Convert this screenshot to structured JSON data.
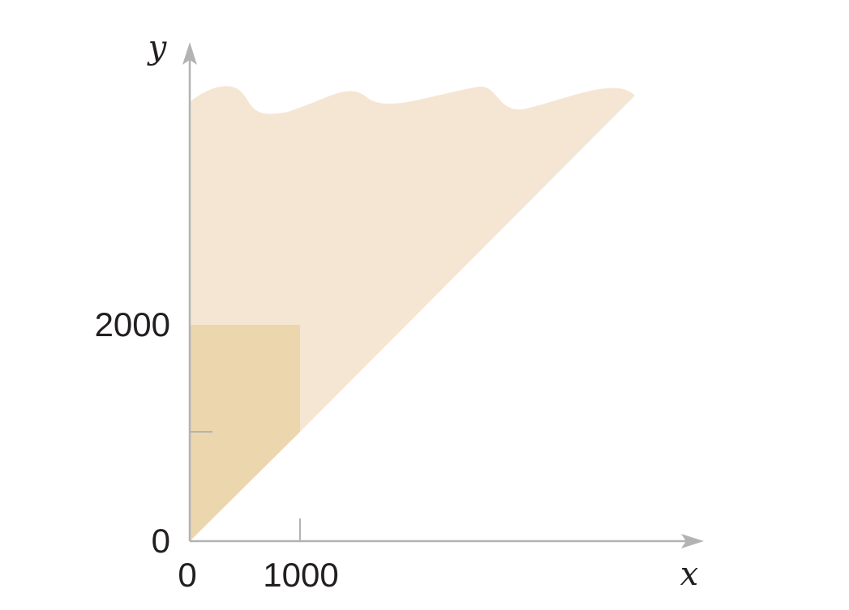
{
  "axes": {
    "x_label": "x",
    "y_label": "y",
    "x_ticks": [
      "0",
      "1000"
    ],
    "y_ticks": [
      "0",
      "2000"
    ]
  },
  "colors": {
    "outer_region": "#f5e6d3",
    "inner_region": "#ebd6ad",
    "axis": "#b3b3b3",
    "text": "#231f20"
  }
}
